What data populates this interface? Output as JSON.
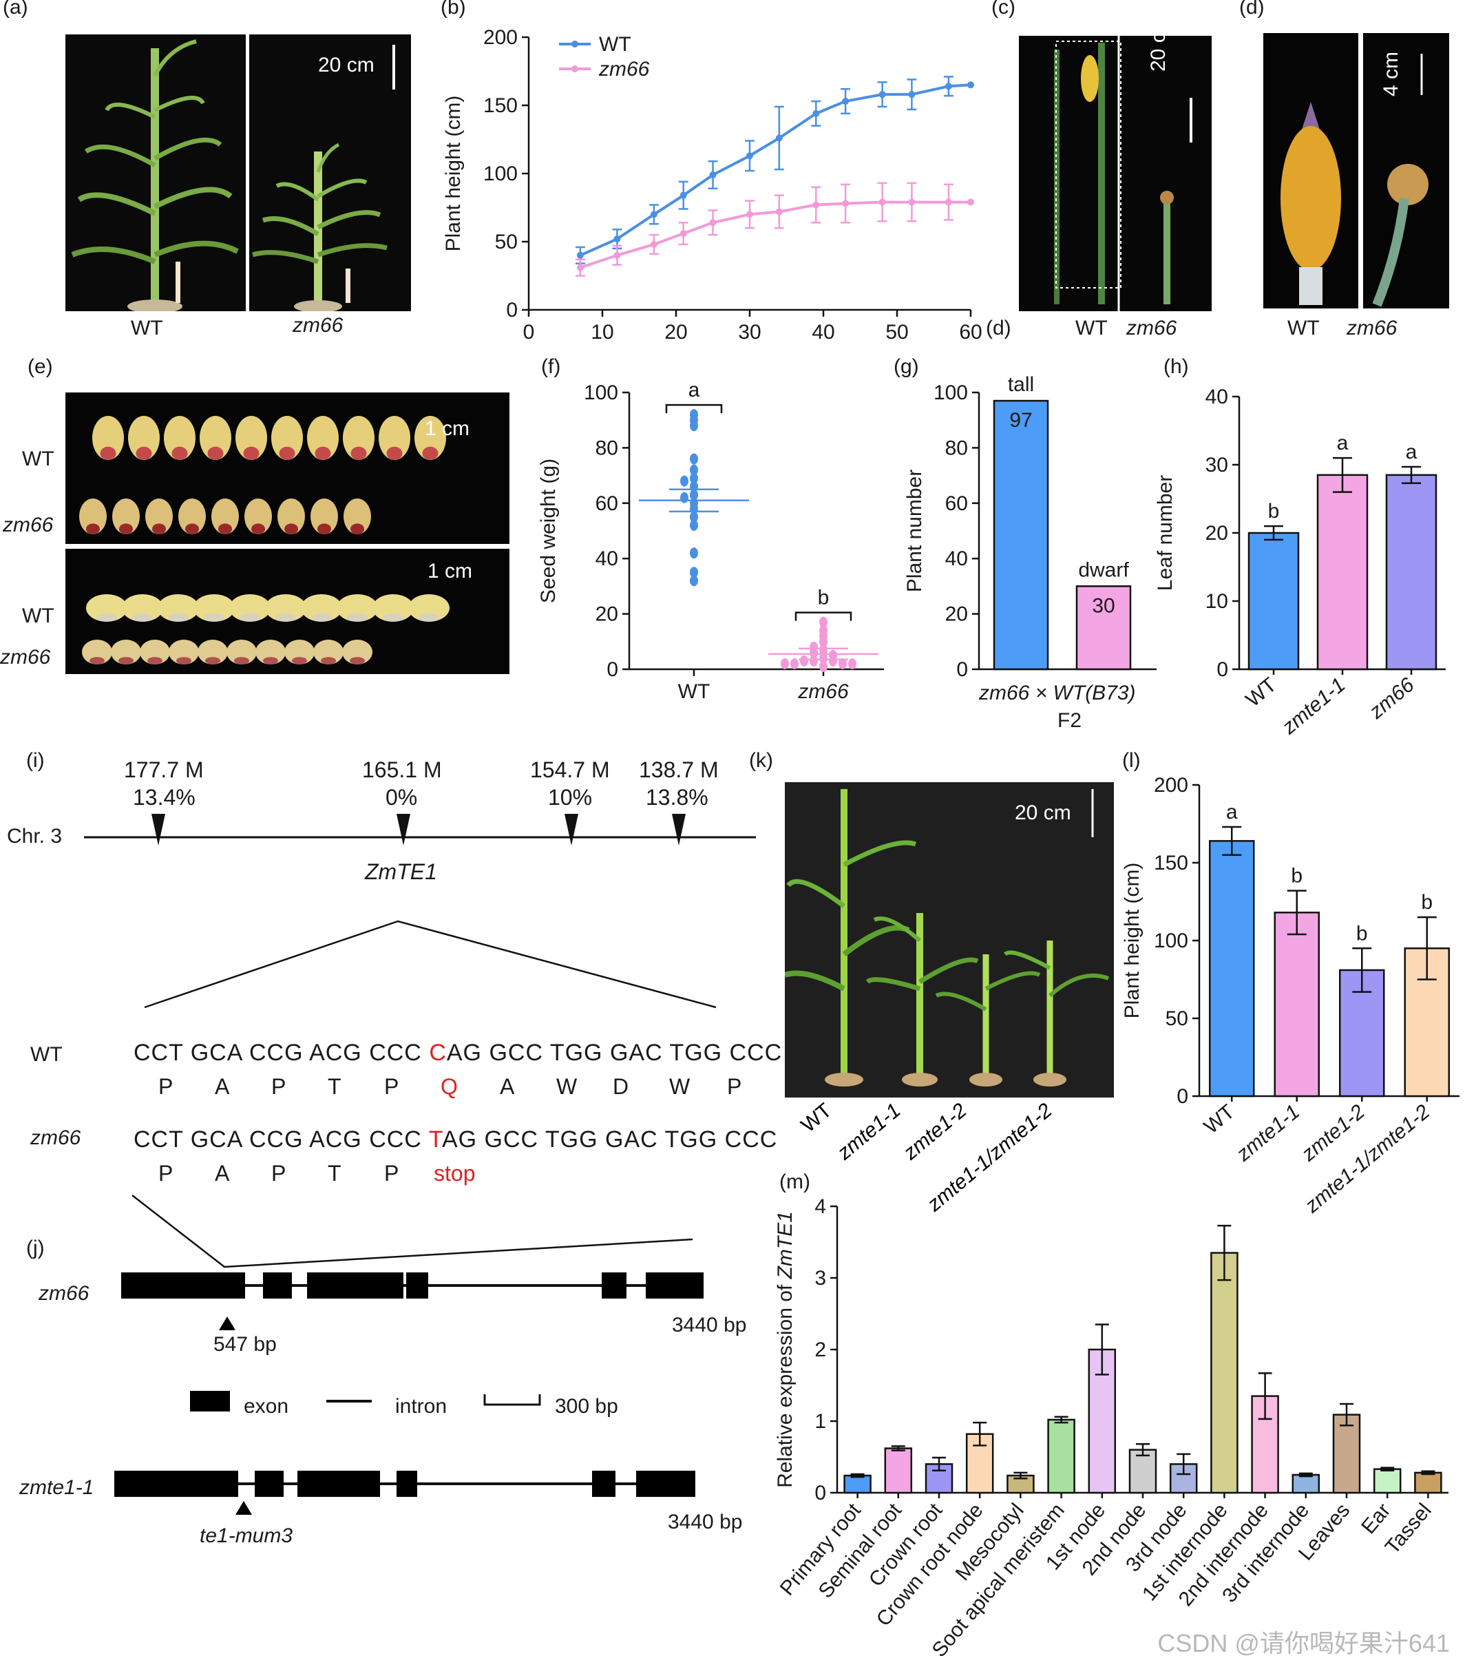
{
  "panel_letters": {
    "a": "(a)",
    "b": "(b)",
    "c": "(c)",
    "d": "(d)",
    "d2": "(d)",
    "e": "(e)",
    "f": "(f)",
    "g": "(g)",
    "h": "(h)",
    "i": "(i)",
    "j": "(j)",
    "k": "(k)",
    "l": "(l)",
    "m": "(m)"
  },
  "labels": {
    "wt": "WT",
    "zm66": "zm66",
    "scale_20cm": "20 cm",
    "scale_4cm": "4 cm",
    "scale_1cm": "1 cm"
  },
  "panel_g": {
    "bars": [
      {
        "label": "tall",
        "value": 97,
        "color": "#4d9cf8"
      },
      {
        "label": "dwarf",
        "value": 30,
        "color": "#f3a6e3"
      }
    ],
    "ylabel": "Plant number",
    "cross": "zm66 × WT(B73)",
    "gen": "F2"
  },
  "panel_i": {
    "chr": "Chr. 3",
    "markers": [
      {
        "pos": "177.7 M",
        "pct": "13.4%"
      },
      {
        "pos": "165.1 M",
        "pct": "0%"
      },
      {
        "pos": "154.7 M",
        "pct": "10%"
      },
      {
        "pos": "138.7 M",
        "pct": "13.8%"
      }
    ],
    "gene": "ZmTE1",
    "wt_label": "WT",
    "zm66_label": "zm66",
    "wt_seq_a": "CCT GCA CCG ACG CCC ",
    "wt_seq_mut": "C",
    "wt_seq_b": "AG GCC TGG GAC TGG CCC",
    "zm_seq_a": "CCT GCA CCG ACG CCC ",
    "zm_seq_mut": "T",
    "zm_seq_b": "AG GCC TGG GAC TGG CCC",
    "wt_aa": [
      "P",
      "A",
      "P",
      "T",
      "P",
      "Q",
      "A",
      "W",
      "D",
      "W",
      "P"
    ],
    "zm_aa": [
      "P",
      "A",
      "P",
      "T",
      "P",
      "stop"
    ]
  },
  "panel_j": {
    "zm66_label": "zm66",
    "zm66_site": "547 bp",
    "length": "3440 bp",
    "legend_exon": "exon",
    "legend_intron": "intron",
    "legend_scale": "300 bp",
    "zmte_label": "zmte1-1",
    "zmte_site": "te1-mum3",
    "length2": "3440 bp"
  },
  "chart_data": [
    {
      "id": "b",
      "type": "line",
      "ylabel": "Plant height (cm)",
      "xlim": [
        0,
        60
      ],
      "ylim": [
        0,
        200
      ],
      "xticks": [
        0,
        10,
        20,
        30,
        40,
        50,
        60
      ],
      "yticks": [
        0,
        50,
        100,
        150,
        200
      ],
      "series": [
        {
          "name": "WT",
          "color": "#4a90e2",
          "x": [
            7,
            12,
            17,
            21,
            25,
            30,
            34,
            39,
            43,
            48,
            52,
            57,
            60
          ],
          "y": [
            40,
            52,
            70,
            84,
            99,
            113,
            126,
            144,
            153,
            158,
            158,
            164,
            165
          ],
          "err": [
            6,
            7,
            7,
            10,
            10,
            11,
            23,
            9,
            9,
            9,
            11,
            7,
            0
          ]
        },
        {
          "name": "zm66",
          "color": "#f29ad8",
          "x": [
            7,
            12,
            17,
            21,
            25,
            30,
            34,
            39,
            43,
            48,
            52,
            57,
            60
          ],
          "y": [
            31,
            40,
            48,
            56,
            64,
            70,
            72,
            77,
            78,
            79,
            79,
            79,
            79
          ],
          "err": [
            6,
            7,
            7,
            8,
            9,
            10,
            12,
            13,
            14,
            14,
            14,
            13,
            0
          ]
        }
      ]
    },
    {
      "id": "f",
      "type": "scatter",
      "ylabel": "Seed weight (g)",
      "ylim": [
        0,
        100
      ],
      "yticks": [
        0,
        20,
        40,
        60,
        80,
        100
      ],
      "categories": [
        "WT",
        "zm66"
      ],
      "groups": [
        {
          "name": "WT",
          "color": "#4a90e2",
          "letter": "a",
          "mean": 61,
          "sem": 4,
          "values": [
            92,
            90,
            88,
            76,
            72,
            69,
            68,
            66,
            63,
            62,
            60,
            58,
            55,
            52,
            42,
            35,
            32
          ]
        },
        {
          "name": "zm66",
          "color": "#f29ad8",
          "letter": "b",
          "mean": 5.5,
          "sem": 2,
          "values": [
            17,
            14,
            12,
            10,
            8,
            7,
            6,
            5,
            4,
            3,
            3,
            3,
            2,
            2,
            2,
            2,
            1
          ]
        }
      ]
    },
    {
      "id": "h",
      "type": "bar",
      "ylabel": "Leaf number",
      "ylim": [
        0,
        40
      ],
      "yticks": [
        0,
        10,
        20,
        30,
        40
      ],
      "categories": [
        "WT",
        "zmte1-1",
        "zm66"
      ],
      "values": [
        20,
        28.5,
        28.5
      ],
      "err": [
        1,
        2.5,
        1.2
      ],
      "letters": [
        "b",
        "a",
        "a"
      ],
      "colors": [
        "#4d9cf8",
        "#f3a6e3",
        "#9d96f4"
      ]
    },
    {
      "id": "l",
      "type": "bar",
      "ylabel": "Plant height (cm)",
      "ylim": [
        0,
        200
      ],
      "yticks": [
        0,
        50,
        100,
        150,
        200
      ],
      "categories": [
        "WT",
        "zmte1-1",
        "zmte1-2",
        "zmte1-1/zmte1-2"
      ],
      "values": [
        164,
        118,
        81,
        95
      ],
      "err": [
        9,
        14,
        14,
        20
      ],
      "letters": [
        "a",
        "b",
        "b",
        "b"
      ],
      "colors": [
        "#4d9cf8",
        "#f3a6e3",
        "#9d96f4",
        "#fcd9b4"
      ]
    },
    {
      "id": "m",
      "type": "bar",
      "ylabel_a": "Relative expression of ",
      "ylabel_b": "ZmTE1",
      "ylim": [
        0,
        4
      ],
      "yticks": [
        0,
        1,
        2,
        3,
        4
      ],
      "categories": [
        "Primary root",
        "Seminal root",
        "Crown root",
        "Crown root node",
        "Mesocotyl",
        "Soot apical meristem",
        "1st node",
        "2nd node",
        "3rd node",
        "1st internode",
        "2nd internode",
        "3rd internode",
        "Leaves",
        "Ear",
        "Tassel"
      ],
      "values": [
        0.24,
        0.62,
        0.4,
        0.82,
        0.24,
        1.02,
        2.0,
        0.6,
        0.4,
        3.35,
        1.35,
        0.25,
        1.09,
        0.33,
        0.28
      ],
      "err": [
        0.02,
        0.03,
        0.09,
        0.16,
        0.04,
        0.04,
        0.35,
        0.08,
        0.14,
        0.38,
        0.32,
        0.02,
        0.15,
        0.02,
        0.02
      ],
      "colors": [
        "#4d9cf8",
        "#f3a6e3",
        "#9d96f4",
        "#fcd9b4",
        "#c9b87a",
        "#a8e0a0",
        "#e7c4f4",
        "#cfcfcf",
        "#aab4e0",
        "#d3cf8e",
        "#f7bce0",
        "#8fb4e0",
        "#c8a88c",
        "#c6f2c6",
        "#c9a062"
      ]
    }
  ],
  "watermark": "CSDN @请你喝好果汁641"
}
